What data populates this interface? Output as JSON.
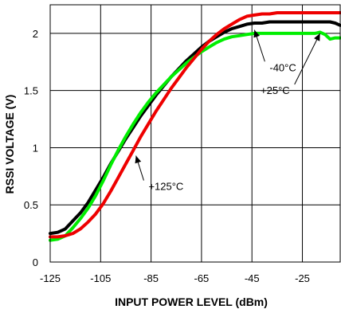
{
  "chart_data": {
    "type": "line",
    "title": "",
    "xlabel": "INPUT POWER LEVEL (dBm)",
    "ylabel": "RSSI VOLTAGE (V)",
    "xlim": [
      -125,
      -10
    ],
    "ylim": [
      0,
      2.25
    ],
    "xticks": [
      -125,
      -105,
      -85,
      -65,
      -45,
      -25
    ],
    "yticks": [
      0,
      0.5,
      1,
      1.5,
      2
    ],
    "xtick_labels": [
      "-125",
      "-105",
      "-85",
      "-65",
      "-45",
      "-25"
    ],
    "ytick_labels": [
      "0",
      "0.5",
      "1",
      "1.5",
      "2"
    ],
    "grid": true,
    "series": [
      {
        "name": "-40°C",
        "color": "#000000",
        "x": [
          -125,
          -122,
          -119,
          -116,
          -113,
          -110,
          -107,
          -104,
          -101,
          -98,
          -95,
          -92,
          -89,
          -86,
          -83,
          -80,
          -77,
          -74,
          -71,
          -68,
          -65,
          -62,
          -59,
          -56,
          -53,
          -50,
          -47,
          -44,
          -41,
          -38,
          -35,
          -32,
          -29,
          -26,
          -23,
          -20,
          -17,
          -14,
          -12,
          -10
        ],
        "y": [
          0.25,
          0.26,
          0.29,
          0.36,
          0.43,
          0.52,
          0.63,
          0.74,
          0.86,
          0.97,
          1.08,
          1.18,
          1.28,
          1.37,
          1.46,
          1.54,
          1.62,
          1.69,
          1.76,
          1.82,
          1.88,
          1.93,
          1.97,
          2.01,
          2.04,
          2.06,
          2.08,
          2.09,
          2.09,
          2.1,
          2.1,
          2.1,
          2.1,
          2.1,
          2.1,
          2.1,
          2.1,
          2.1,
          2.09,
          2.07
        ]
      },
      {
        "name": "+25°C",
        "color": "#00ee00",
        "x": [
          -125,
          -122,
          -119,
          -116,
          -113,
          -110,
          -107,
          -104,
          -101,
          -98,
          -95,
          -92,
          -89,
          -86,
          -83,
          -80,
          -77,
          -74,
          -71,
          -68,
          -65,
          -62,
          -59,
          -56,
          -53,
          -50,
          -47,
          -44,
          -41,
          -38,
          -35,
          -32,
          -29,
          -26,
          -23,
          -20,
          -18,
          -16,
          -14,
          -12,
          -10
        ],
        "y": [
          0.19,
          0.2,
          0.23,
          0.3,
          0.38,
          0.47,
          0.58,
          0.71,
          0.85,
          0.98,
          1.1,
          1.21,
          1.31,
          1.4,
          1.48,
          1.55,
          1.62,
          1.68,
          1.74,
          1.79,
          1.84,
          1.88,
          1.92,
          1.95,
          1.97,
          1.98,
          1.99,
          2.0,
          2.0,
          2.0,
          2.0,
          2.0,
          2.0,
          2.0,
          2.0,
          2.0,
          2.01,
          1.99,
          1.95,
          1.96,
          1.96
        ]
      },
      {
        "name": "+125°C",
        "color": "#ee0000",
        "x": [
          -125,
          -122,
          -119,
          -116,
          -113,
          -110,
          -107,
          -104,
          -101,
          -98,
          -95,
          -92,
          -89,
          -86,
          -83,
          -80,
          -77,
          -74,
          -71,
          -68,
          -65,
          -62,
          -59,
          -56,
          -53,
          -50,
          -47,
          -44,
          -41,
          -38,
          -35,
          -32,
          -29,
          -26,
          -23,
          -20,
          -17,
          -14,
          -10
        ],
        "y": [
          0.22,
          0.22,
          0.23,
          0.25,
          0.29,
          0.35,
          0.42,
          0.51,
          0.62,
          0.74,
          0.86,
          0.98,
          1.1,
          1.21,
          1.32,
          1.42,
          1.52,
          1.61,
          1.7,
          1.78,
          1.86,
          1.93,
          1.99,
          2.04,
          2.08,
          2.12,
          2.15,
          2.16,
          2.17,
          2.17,
          2.18,
          2.18,
          2.18,
          2.18,
          2.18,
          2.18,
          2.18,
          2.18,
          2.18
        ]
      }
    ],
    "annotations": [
      {
        "text": "-40°C",
        "text_at": [
          -38,
          1.67
        ],
        "arrow_to": [
          -44,
          2.03
        ]
      },
      {
        "text": "+25°C",
        "text_at": [
          -30,
          1.47
        ],
        "arrow_to": [
          -18,
          2.0
        ]
      },
      {
        "text": "+125°C",
        "text_at": [
          -86,
          0.63
        ],
        "arrow_to": [
          -91,
          0.93
        ]
      }
    ]
  }
}
